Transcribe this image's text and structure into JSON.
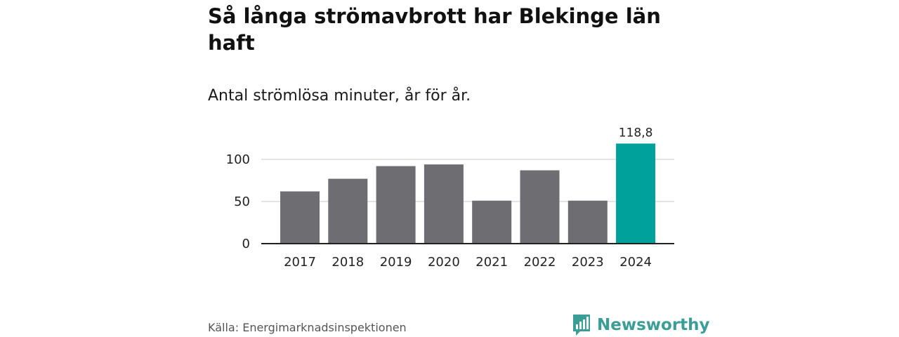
{
  "header": {
    "title": "Så långa strömavbrott har Blekinge län haft",
    "subtitle": "Antal strömlösa minuter, år för år."
  },
  "chart_data": {
    "type": "bar",
    "title": "Så långa strömavbrott har Blekinge län haft",
    "subtitle": "Antal strömlösa minuter, år för år.",
    "categories": [
      "2017",
      "2018",
      "2019",
      "2020",
      "2021",
      "2022",
      "2023",
      "2024"
    ],
    "values": [
      62,
      77,
      92,
      94,
      51,
      87,
      51,
      118.8
    ],
    "highlight_index": 7,
    "highlight_label": "118,8",
    "bar_color": "#6e6d72",
    "highlight_color": "#00a19a",
    "ylim": [
      0,
      125
    ],
    "yticks": [
      0,
      50,
      100
    ],
    "grid": true,
    "xlabel": "",
    "ylabel": ""
  },
  "footer": {
    "source_label": "Källa:",
    "source_value": "Energimarknadsinspektionen",
    "brand": "Newsworthy",
    "brand_color": "#3a9e96",
    "brand_icon": "bar-chart-speech-bubble-icon"
  }
}
